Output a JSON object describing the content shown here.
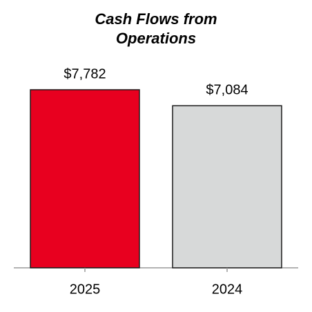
{
  "chart_data": {
    "type": "bar",
    "title": "Cash Flows from Operations",
    "categories": [
      "2025",
      "2024"
    ],
    "values": [
      7782,
      7084
    ],
    "value_labels": [
      "$7,782",
      "$7,084"
    ],
    "colors": [
      "#e8001f",
      "#d7d9d9"
    ]
  }
}
